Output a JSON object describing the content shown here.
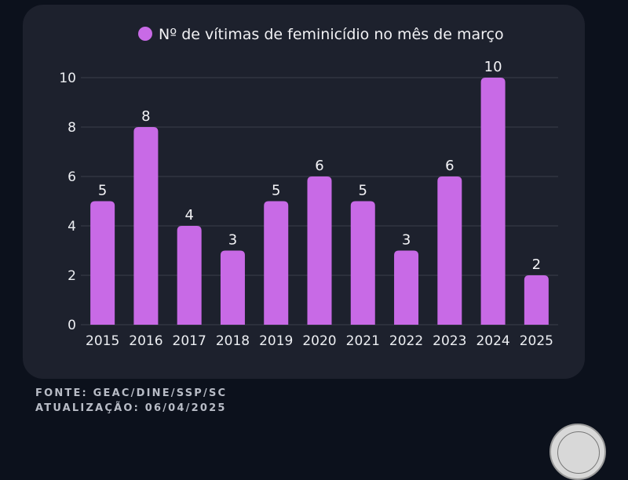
{
  "chart_data": {
    "type": "bar",
    "title": "",
    "legend": {
      "entries": [
        "Nº de vítimas de feminicídio no mês de março"
      ],
      "placement": "top-center"
    },
    "categories": [
      "2015",
      "2016",
      "2017",
      "2018",
      "2019",
      "2020",
      "2021",
      "2022",
      "2023",
      "2024",
      "2025"
    ],
    "series": [
      {
        "name": "Nº de vítimas de feminicídio no mês de março",
        "values": [
          5,
          8,
          4,
          3,
          5,
          6,
          5,
          3,
          6,
          10,
          2
        ],
        "color": "#c86ae6"
      }
    ],
    "data_labels": [
      "5",
      "8",
      "4",
      "3",
      "5",
      "6",
      "5",
      "3",
      "6",
      "10",
      "2"
    ],
    "xlabel": "",
    "ylabel": "",
    "ylim": [
      0,
      10
    ],
    "yticks": [
      0,
      2,
      4,
      6,
      8,
      10
    ],
    "ytick_labels": [
      "0",
      "2",
      "4",
      "6",
      "8",
      "10"
    ],
    "grid": true
  },
  "footer": {
    "source": "FONTE: GEAC/DINE/SSP/SC",
    "updated": "ATUALIZAÇÃO: 06/04/2025"
  },
  "colors": {
    "background": "#0c111c",
    "card": "#1d212d",
    "bar": "#c86ae6",
    "grid": "#3a3f4b",
    "text": "#eceef2"
  }
}
